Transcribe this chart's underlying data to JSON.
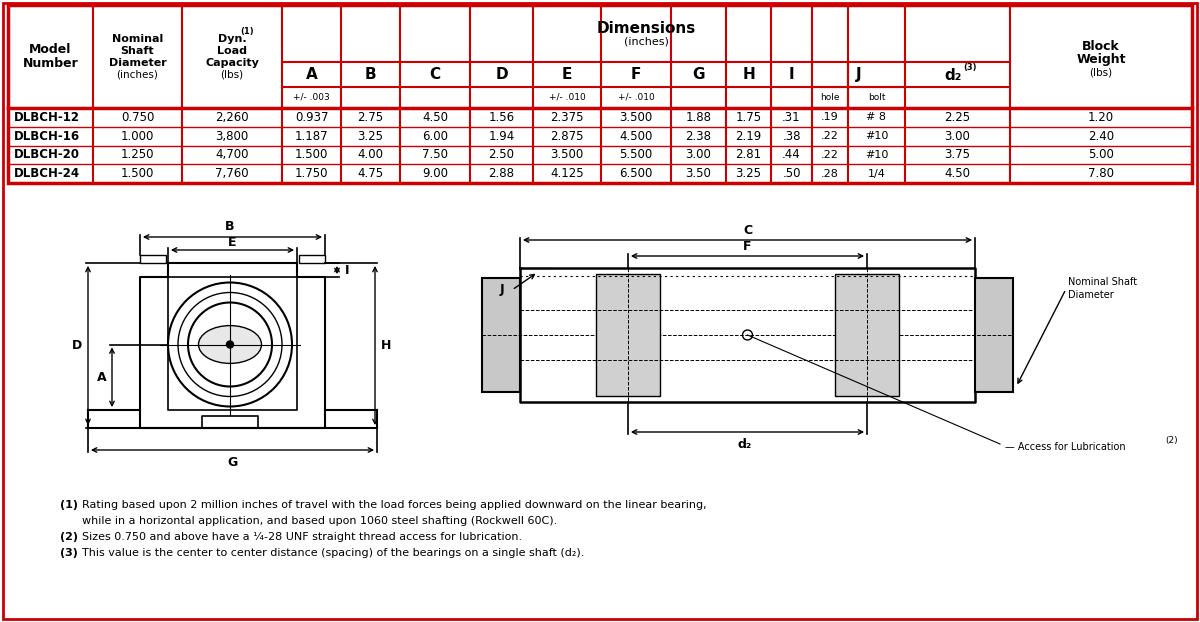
{
  "bg_color": "#ffffff",
  "border_color": "#cc0000",
  "rows": [
    [
      "DLBCH-12",
      "0.750",
      "2,260",
      "0.937",
      "2.75",
      "4.50",
      "1.56",
      "2.375",
      "3.500",
      "1.88",
      "1.75",
      ".31",
      ".19",
      "# 8",
      "2.25",
      "1.20"
    ],
    [
      "DLBCH-16",
      "1.000",
      "3,800",
      "1.187",
      "3.25",
      "6.00",
      "1.94",
      "2.875",
      "4.500",
      "2.38",
      "2.19",
      ".38",
      ".22",
      "#10",
      "3.00",
      "2.40"
    ],
    [
      "DLBCH-20",
      "1.250",
      "4,700",
      "1.500",
      "4.00",
      "7.50",
      "2.50",
      "3.500",
      "5.500",
      "3.00",
      "2.81",
      ".44",
      ".22",
      "#10",
      "3.75",
      "5.00"
    ],
    [
      "DLBCH-24",
      "1.500",
      "7,760",
      "1.750",
      "4.75",
      "9.00",
      "2.88",
      "4.125",
      "6.500",
      "3.50",
      "3.25",
      ".50",
      ".28",
      "1/4",
      "4.50",
      "7.80"
    ]
  ],
  "footnotes": [
    [
      "(1)",
      "Rating based upon 2 million inches of travel with the load forces being applied downward on the linear bearing,"
    ],
    [
      "",
      "while in a horizontal application, and based upon 1060 steel shafting (Rockwell 60C)."
    ],
    [
      "(2)",
      "Sizes 0.750 and above have a ¹⁄₄-28 UNF straight thread access for lubrication."
    ],
    [
      "(3)",
      "This value is the center to center distance (spacing) of the bearings on a single shaft (d₂)."
    ]
  ]
}
